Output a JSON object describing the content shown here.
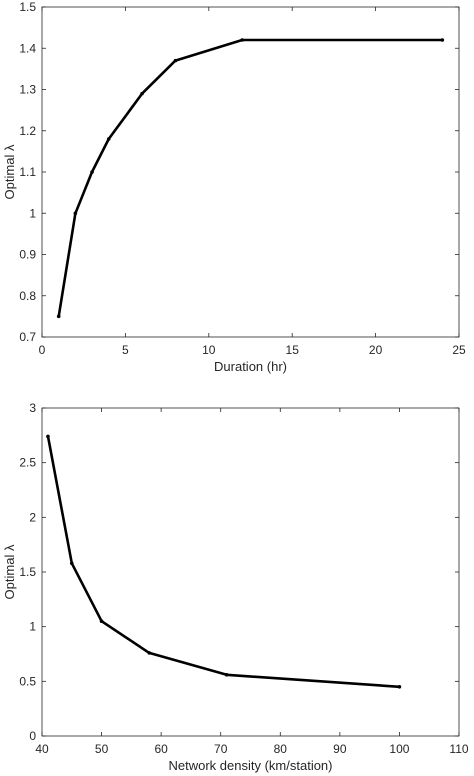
{
  "chart_data": [
    {
      "type": "line",
      "xlabel": "Duration (hr)",
      "ylabel": "Optimal λ",
      "xlim": [
        0,
        25
      ],
      "ylim": [
        0.7,
        1.5
      ],
      "xticks": [
        "0",
        "5",
        "10",
        "15",
        "20",
        "25"
      ],
      "yticks": [
        "0.7",
        "0.8",
        "0.9",
        "1",
        "1.1",
        "1.2",
        "1.3",
        "1.4",
        "1.5"
      ],
      "grid": false,
      "series": [
        {
          "x": [
            1,
            2,
            3,
            4,
            6,
            8,
            12,
            24
          ],
          "y": [
            0.75,
            1.0,
            1.1,
            1.18,
            1.29,
            1.37,
            1.42,
            1.42
          ]
        }
      ]
    },
    {
      "type": "line",
      "xlabel": "Network density (km/station)",
      "ylabel": "Optimal λ",
      "xlim": [
        40,
        110
      ],
      "ylim": [
        0,
        3
      ],
      "xticks": [
        "40",
        "50",
        "60",
        "70",
        "80",
        "90",
        "100",
        "110"
      ],
      "yticks": [
        "0",
        "0.5",
        "1",
        "1.5",
        "2",
        "2.5",
        "3"
      ],
      "grid": false,
      "series": [
        {
          "x": [
            41,
            45,
            50,
            58,
            71,
            100
          ],
          "y": [
            2.74,
            1.58,
            1.05,
            0.76,
            0.56,
            0.45
          ]
        }
      ]
    }
  ]
}
